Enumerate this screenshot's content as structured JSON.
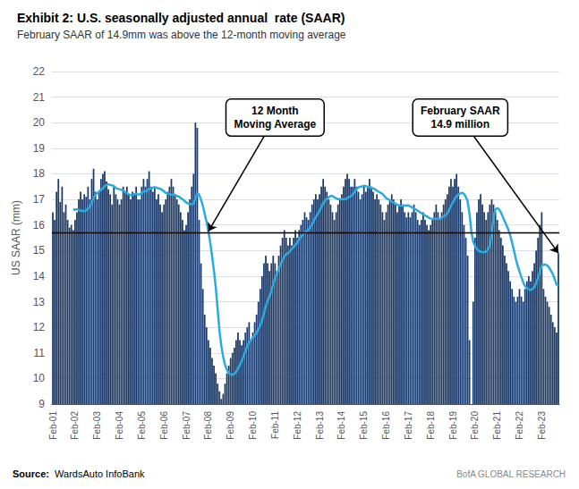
{
  "chart_data": {
    "type": "bar",
    "title": "Exhibit 2: U.S. seasonally adjusted annual  rate (SAAR)",
    "subtitle": "February SAAR of 14.9mm was above the 12-month moving average",
    "ylabel": "US SAAR (mm)",
    "source": "Source:  WardsAuto InfoBank",
    "watermark": "BofA GLOBAL RESEARCH",
    "categories": [
      "Feb-01",
      null,
      null,
      null,
      null,
      null,
      null,
      null,
      null,
      null,
      null,
      null,
      "Feb-02",
      null,
      null,
      null,
      null,
      null,
      null,
      null,
      null,
      null,
      null,
      null,
      "Feb-03",
      null,
      null,
      null,
      null,
      null,
      null,
      null,
      null,
      null,
      null,
      null,
      "Feb-04",
      null,
      null,
      null,
      null,
      null,
      null,
      null,
      null,
      null,
      null,
      null,
      "Feb-05",
      null,
      null,
      null,
      null,
      null,
      null,
      null,
      null,
      null,
      null,
      null,
      "Feb-06",
      null,
      null,
      null,
      null,
      null,
      null,
      null,
      null,
      null,
      null,
      null,
      "Feb-07",
      null,
      null,
      null,
      null,
      null,
      null,
      null,
      null,
      null,
      null,
      null,
      "Feb-08",
      null,
      null,
      null,
      null,
      null,
      null,
      null,
      null,
      null,
      null,
      null,
      "Feb-09",
      null,
      null,
      null,
      null,
      null,
      null,
      null,
      null,
      null,
      null,
      null,
      "Feb-10",
      null,
      null,
      null,
      null,
      null,
      null,
      null,
      null,
      null,
      null,
      null,
      "Feb-11",
      null,
      null,
      null,
      null,
      null,
      null,
      null,
      null,
      null,
      null,
      null,
      "Feb-12",
      null,
      null,
      null,
      null,
      null,
      null,
      null,
      null,
      null,
      null,
      null,
      "Feb-13",
      null,
      null,
      null,
      null,
      null,
      null,
      null,
      null,
      null,
      null,
      null,
      "Feb-14",
      null,
      null,
      null,
      null,
      null,
      null,
      null,
      null,
      null,
      null,
      null,
      "Feb-15",
      null,
      null,
      null,
      null,
      null,
      null,
      null,
      null,
      null,
      null,
      null,
      "Feb-16",
      null,
      null,
      null,
      null,
      null,
      null,
      null,
      null,
      null,
      null,
      null,
      "Feb-17",
      null,
      null,
      null,
      null,
      null,
      null,
      null,
      null,
      null,
      null,
      null,
      "Feb-18",
      null,
      null,
      null,
      null,
      null,
      null,
      null,
      null,
      null,
      null,
      null,
      "Feb-19",
      null,
      null,
      null,
      null,
      null,
      null,
      null,
      null,
      null,
      null,
      null,
      "Feb-20",
      null,
      null,
      null,
      null,
      null,
      null,
      null,
      null,
      null,
      null,
      null,
      "Feb-21",
      null,
      null,
      null,
      null,
      null,
      null,
      null,
      null,
      null,
      null,
      null,
      "Feb-22",
      null,
      null,
      null,
      null,
      null,
      null,
      null,
      null,
      null,
      null,
      null,
      "Feb-23",
      null,
      null,
      null,
      null,
      null,
      null,
      null,
      null,
      null
    ],
    "series": [
      {
        "type": "bar",
        "color": "#1a3a6b",
        "values": [
          16.5,
          16.2,
          17.3,
          17.8,
          16.9,
          17.5,
          16.5,
          16.8,
          16.2,
          15.9,
          16.0,
          15.8,
          16.2,
          16.5,
          17.0,
          17.3,
          17.0,
          17.2,
          17.1,
          17.5,
          17.0,
          17.8,
          18.2,
          17.3,
          17.0,
          17.3,
          17.8,
          18.0,
          18.1,
          17.7,
          17.4,
          17.2,
          16.8,
          17.5,
          17.2,
          17.0,
          16.8,
          17.0,
          17.5,
          17.3,
          17.5,
          17.2,
          17.0,
          17.3,
          17.2,
          17.5,
          17.0,
          17.0,
          17.5,
          17.8,
          17.5,
          17.8,
          18.1,
          17.5,
          17.3,
          17.5,
          17.0,
          17.2,
          16.8,
          16.5,
          16.8,
          17.0,
          17.3,
          17.5,
          17.8,
          17.5,
          17.2,
          17.0,
          16.8,
          16.5,
          16.2,
          15.8,
          16.0,
          16.5,
          17.0,
          17.5,
          18.0,
          20.0,
          19.8,
          16.2,
          14.5,
          13.5,
          12.5,
          12.0,
          11.5,
          11.2,
          10.8,
          10.5,
          10.2,
          9.8,
          9.5,
          9.2,
          9.4,
          9.8,
          10.2,
          10.5,
          10.8,
          11.0,
          11.2,
          11.5,
          11.8,
          11.5,
          11.3,
          11.5,
          11.8,
          12.0,
          12.2,
          11.5,
          11.8,
          12.2,
          12.5,
          13.0,
          13.5,
          14.0,
          14.5,
          14.8,
          14.5,
          14.2,
          14.5,
          14.8,
          14.5,
          14.2,
          14.8,
          15.2,
          15.5,
          15.8,
          15.5,
          15.2,
          15.5,
          15.2,
          15.5,
          15.8,
          15.5,
          15.8,
          16.0,
          16.2,
          16.5,
          16.3,
          16.2,
          16.5,
          16.8,
          17.0,
          17.2,
          17.0,
          17.2,
          17.5,
          17.8,
          17.5,
          17.3,
          17.0,
          16.8,
          16.5,
          16.2,
          16.5,
          16.8,
          17.0,
          17.2,
          17.5,
          17.8,
          18.0,
          17.8,
          17.5,
          17.5,
          17.8,
          17.5,
          17.3,
          17.0,
          17.2,
          17.5,
          17.3,
          17.5,
          17.8,
          17.5,
          17.3,
          17.0,
          17.2,
          17.0,
          16.8,
          16.5,
          16.2,
          16.5,
          16.8,
          17.0,
          17.2,
          17.0,
          16.8,
          16.5,
          16.8,
          17.0,
          16.8,
          16.5,
          16.3,
          16.5,
          16.3,
          16.5,
          16.8,
          16.5,
          16.2,
          16.0,
          16.2,
          16.5,
          16.2,
          16.0,
          15.8,
          16.0,
          16.2,
          16.5,
          16.8,
          16.5,
          16.2,
          16.5,
          16.8,
          17.0,
          17.2,
          17.5,
          17.8,
          17.5,
          17.8,
          18.0,
          17.5,
          17.0,
          16.5,
          16.0,
          15.5,
          14.8,
          11.5,
          9.0,
          13.0,
          15.5,
          16.5,
          17.0,
          17.2,
          16.8,
          16.5,
          16.2,
          16.5,
          16.8,
          17.0,
          16.8,
          16.5,
          16.2,
          15.8,
          15.5,
          15.2,
          14.8,
          14.5,
          14.2,
          13.8,
          13.5,
          13.2,
          13.0,
          13.2,
          13.5,
          13.2,
          13.0,
          13.5,
          13.8,
          14.0,
          13.8,
          14.2,
          14.5,
          15.0,
          15.5,
          16.0,
          16.5,
          13.5,
          13.2,
          13.0,
          12.8,
          12.5,
          12.2,
          12.0,
          11.8,
          14.9
        ]
      },
      {
        "type": "line",
        "color": "#29abe2",
        "values": [
          null,
          null,
          null,
          null,
          null,
          null,
          null,
          null,
          null,
          null,
          null,
          16.6167,
          16.5917,
          16.6167,
          16.5917,
          16.55,
          16.5583,
          16.5333,
          16.5833,
          16.6417,
          16.7083,
          16.8667,
          17.05,
          17.175,
          17.2417,
          17.3083,
          17.375,
          17.4333,
          17.525,
          17.5667,
          17.5917,
          17.5667,
          17.55,
          17.525,
          17.4417,
          17.4167,
          17.4,
          17.375,
          17.35,
          17.2917,
          17.2417,
          17.2,
          17.1667,
          17.175,
          17.2083,
          17.2083,
          17.1917,
          17.1917,
          17.25,
          17.3167,
          17.3167,
          17.3583,
          17.4083,
          17.4333,
          17.4583,
          17.475,
          17.4583,
          17.4333,
          17.4167,
          17.375,
          17.3167,
          17.25,
          17.2333,
          17.2083,
          17.1833,
          17.1833,
          17.175,
          17.1333,
          17.1167,
          17.0583,
          17.0083,
          16.95,
          16.8833,
          16.8417,
          16.8167,
          16.8167,
          16.8333,
          17.0417,
          17.2583,
          17.1917,
          17.0,
          16.75,
          16.4417,
          16.125,
          15.75,
          15.3083,
          14.7917,
          14.2083,
          13.5583,
          12.7083,
          11.85,
          11.2667,
          10.8417,
          10.5333,
          10.3417,
          10.2167,
          10.1583,
          10.1417,
          10.175,
          10.2583,
          10.3917,
          10.5333,
          10.6833,
          10.875,
          11.075,
          11.2583,
          11.425,
          11.5083,
          11.5917,
          11.6917,
          11.8,
          11.925,
          12.0667,
          12.275,
          12.5417,
          12.8167,
          13.0417,
          13.225,
          13.4167,
          13.6917,
          13.9167,
          14.0833,
          14.275,
          14.4583,
          14.625,
          14.775,
          14.8583,
          14.8917,
          14.975,
          15.0583,
          15.1417,
          15.225,
          15.3083,
          15.4417,
          15.5417,
          15.625,
          15.7083,
          15.75,
          15.8083,
          15.9167,
          16.025,
          16.175,
          16.3167,
          16.4167,
          16.5583,
          16.7,
          16.85,
          16.9583,
          17.025,
          17.0833,
          17.1333,
          17.1333,
          17.0833,
          17.0417,
          17.0083,
          17.0083,
          17.0083,
          17.0083,
          17.0083,
          17.05,
          17.0917,
          17.1333,
          17.1917,
          17.3,
          17.4083,
          17.475,
          17.4917,
          17.5083,
          17.5333,
          17.5167,
          17.4917,
          17.475,
          17.45,
          17.4333,
          17.3917,
          17.3417,
          17.3,
          17.2583,
          17.2167,
          17.1333,
          17.05,
          17.0083,
          16.9667,
          16.9167,
          16.875,
          16.8333,
          16.7917,
          16.7583,
          16.7583,
          16.7583,
          16.7583,
          16.7667,
          16.7667,
          16.725,
          16.6833,
          16.65,
          16.6083,
          16.5583,
          16.5167,
          16.4667,
          16.425,
          16.375,
          16.3333,
          16.2917,
          16.25,
          16.2417,
          16.2417,
          16.2417,
          16.2417,
          16.2417,
          16.2833,
          16.3333,
          16.375,
          16.4583,
          16.5833,
          16.75,
          16.875,
          17.0083,
          17.1333,
          17.1917,
          17.2333,
          17.2583,
          17.2167,
          17.1083,
          16.925,
          16.45,
          15.7417,
          15.3417,
          15.175,
          15.0667,
          14.9833,
          14.9583,
          14.9417,
          14.9417,
          14.9583,
          15.0417,
          15.2083,
          15.6667,
          16.3167,
          16.6083,
          16.6667,
          16.6083,
          16.4833,
          16.3167,
          16.15,
          15.9833,
          15.8167,
          15.5917,
          15.3167,
          15.0,
          14.6833,
          14.4083,
          14.1833,
          13.9667,
          13.7583,
          13.6167,
          13.5333,
          13.4917,
          13.4583,
          13.4917,
          13.575,
          13.725,
          13.9333,
          14.1667,
          14.4167,
          14.4417,
          14.4583,
          14.4167,
          14.3333,
          14.2083,
          14.075,
          13.8917,
          13.6667,
          13.6583
        ]
      }
    ],
    "hline": {
      "value": 15.7,
      "color": "#000000"
    },
    "annotations": [
      {
        "text": "12 Month\nMoving Average"
      },
      {
        "text": "February SAAR\n14.9 million"
      }
    ],
    "ylim": [
      9,
      22
    ],
    "yticks": [
      9,
      10,
      11,
      12,
      13,
      14,
      15,
      16,
      17,
      18,
      19,
      20,
      21,
      22
    ],
    "grid": true
  }
}
